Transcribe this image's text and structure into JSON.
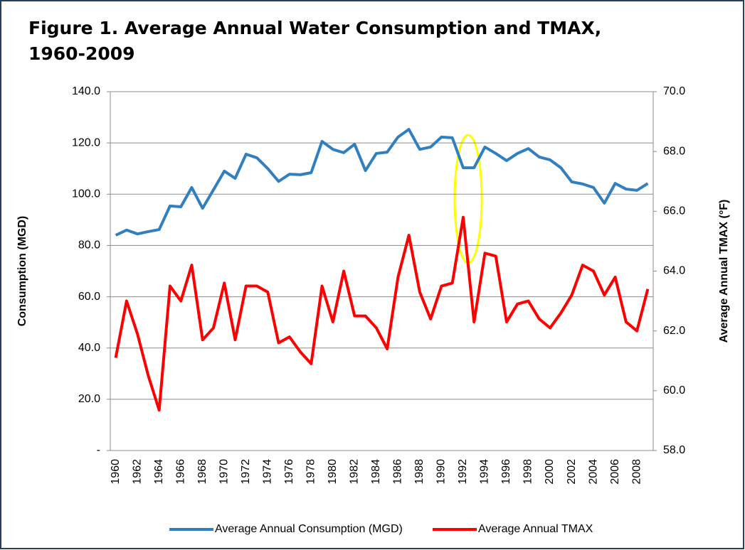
{
  "chart_data": {
    "type": "line",
    "title": "Figure 1. Average Annual Water Consumption and TMAX, 1960-2009",
    "y_label": "Consumption (MGD)",
    "y2_label": "Average Annual TMAX (°F)",
    "categories": [
      "1960",
      null,
      "1962",
      null,
      "1964",
      null,
      "1966",
      null,
      "1968",
      null,
      "1970",
      null,
      "1972",
      null,
      "1974",
      null,
      "1976",
      null,
      "1978",
      null,
      "1980",
      null,
      "1982",
      null,
      "1984",
      null,
      "1986",
      null,
      "1988",
      null,
      "1990",
      null,
      "1992",
      null,
      "1994",
      null,
      "1996",
      null,
      "1998",
      null,
      "2000",
      null,
      "2002",
      null,
      "2004",
      null,
      "2006",
      null,
      "2008",
      null
    ],
    "series": [
      {
        "name": "Average Annual Consumption (MGD)",
        "color": "#2f7fc1",
        "values": [
          84.0,
          86.0,
          84.5,
          85.4,
          86.2,
          95.4,
          95.1,
          102.6,
          94.5,
          101.7,
          109.0,
          106.2,
          115.6,
          114.2,
          110.0,
          105.0,
          107.8,
          107.6,
          108.4,
          120.6,
          117.5,
          116.2,
          119.5,
          109.2,
          115.9,
          116.4,
          122.3,
          125.3,
          117.5,
          118.4,
          122.3,
          122.0,
          110.3,
          110.3,
          118.4,
          115.9,
          113.1,
          115.9,
          117.8,
          114.5,
          113.4,
          110.3,
          104.8,
          104.0,
          102.6,
          96.5,
          104.2,
          102.0,
          101.5,
          104.2
        ]
      },
      {
        "name": "Average Annual TMAX",
        "color": "#ff0000",
        "axis": "y2",
        "values": [
          61.1,
          63.0,
          61.9,
          60.5,
          59.35,
          63.5,
          63.0,
          64.2,
          61.7,
          62.1,
          63.6,
          61.7,
          63.5,
          63.5,
          63.3,
          61.6,
          61.8,
          61.3,
          60.9,
          63.5,
          62.3,
          64.0,
          62.5,
          62.5,
          62.1,
          61.4,
          63.8,
          65.2,
          63.3,
          62.4,
          63.5,
          63.6,
          65.8,
          62.3,
          64.6,
          64.5,
          62.3,
          62.9,
          63.0,
          62.4,
          62.1,
          62.6,
          63.2,
          64.2,
          64.0,
          63.2,
          63.8,
          62.3,
          62.0,
          63.4
        ]
      }
    ],
    "ylim": [
      0,
      140
    ],
    "yticks": [
      {
        "value": 0,
        "label": "-"
      },
      {
        "value": 20,
        "label": "20.0"
      },
      {
        "value": 40,
        "label": "40.0"
      },
      {
        "value": 60,
        "label": "60.0"
      },
      {
        "value": 80,
        "label": "80.0"
      },
      {
        "value": 100,
        "label": "100.0"
      },
      {
        "value": 120,
        "label": "120.0"
      },
      {
        "value": 140,
        "label": "140.0"
      }
    ],
    "y2lim": [
      58,
      70
    ],
    "y2ticks": [
      {
        "value": 58,
        "label": "58.0"
      },
      {
        "value": 60,
        "label": "60.0"
      },
      {
        "value": 62,
        "label": "62.0"
      },
      {
        "value": 64,
        "label": "64.0"
      },
      {
        "value": 66,
        "label": "66.0"
      },
      {
        "value": 68,
        "label": "68.0"
      },
      {
        "value": 70,
        "label": "70.0"
      }
    ],
    "grid": true,
    "legend": "bottom"
  }
}
